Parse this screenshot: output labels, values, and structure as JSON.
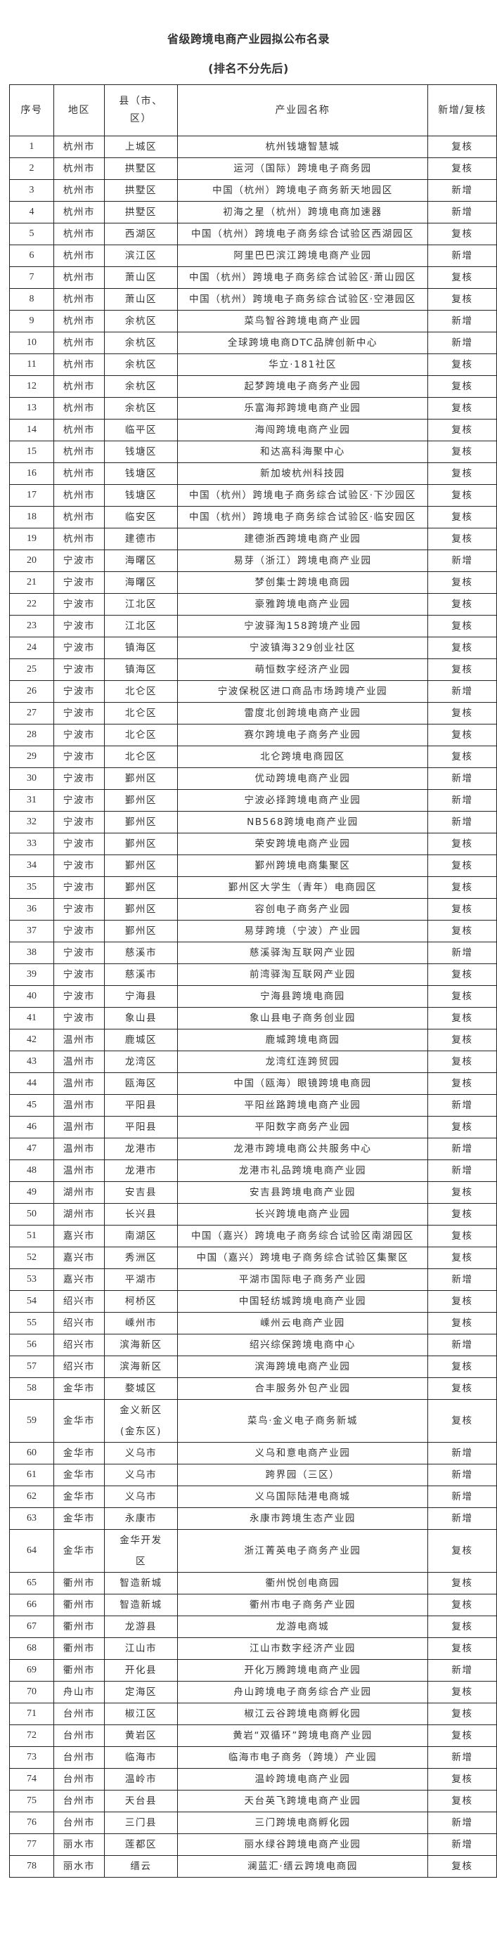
{
  "title": "省级跨境电商产业园拟公布名录",
  "subtitle": "(排名不分先后)",
  "table": {
    "headers": [
      "序号",
      "地区",
      "县（市、区）",
      "产业园名称",
      "新增/复核"
    ],
    "rows": [
      [
        "1",
        "杭州市",
        "上城区",
        "杭州钱塘智慧城",
        "复核"
      ],
      [
        "2",
        "杭州市",
        "拱墅区",
        "运河（国际）跨境电子商务园",
        "复核"
      ],
      [
        "3",
        "杭州市",
        "拱墅区",
        "中国（杭州）跨境电子商务新天地园区",
        "新增"
      ],
      [
        "4",
        "杭州市",
        "拱墅区",
        "初海之星（杭州）跨境电商加速器",
        "新增"
      ],
      [
        "5",
        "杭州市",
        "西湖区",
        "中国（杭州）跨境电子商务综合试验区西湖园区",
        "复核"
      ],
      [
        "6",
        "杭州市",
        "滨江区",
        "阿里巴巴滨江跨境电商产业园",
        "新增"
      ],
      [
        "7",
        "杭州市",
        "萧山区",
        "中国（杭州）跨境电子商务综合试验区·萧山园区",
        "复核"
      ],
      [
        "8",
        "杭州市",
        "萧山区",
        "中国（杭州）跨境电子商务综合试验区·空港园区",
        "复核"
      ],
      [
        "9",
        "杭州市",
        "余杭区",
        "菜鸟智谷跨境电商产业园",
        "新增"
      ],
      [
        "10",
        "杭州市",
        "余杭区",
        "全球跨境电商DTC品牌创新中心",
        "新增"
      ],
      [
        "11",
        "杭州市",
        "余杭区",
        "华立·181社区",
        "复核"
      ],
      [
        "12",
        "杭州市",
        "余杭区",
        "起梦跨境电子商务产业园",
        "复核"
      ],
      [
        "13",
        "杭州市",
        "余杭区",
        "乐富海邦跨境电商产业园",
        "复核"
      ],
      [
        "14",
        "杭州市",
        "临平区",
        "海闯跨境电商产业园",
        "复核"
      ],
      [
        "15",
        "杭州市",
        "钱塘区",
        "和达高科海聚中心",
        "复核"
      ],
      [
        "16",
        "杭州市",
        "钱塘区",
        "新加坡杭州科技园",
        "复核"
      ],
      [
        "17",
        "杭州市",
        "钱塘区",
        "中国（杭州）跨境电子商务综合试验区·下沙园区",
        "复核"
      ],
      [
        "18",
        "杭州市",
        "临安区",
        "中国（杭州）跨境电子商务综合试验区·临安园区",
        "复核"
      ],
      [
        "19",
        "杭州市",
        "建德市",
        "建德浙西跨境电商产业园",
        "复核"
      ],
      [
        "20",
        "宁波市",
        "海曙区",
        "易芽（浙江）跨境电商产业园",
        "新增"
      ],
      [
        "21",
        "宁波市",
        "海曙区",
        "梦创集士跨境电商园",
        "复核"
      ],
      [
        "22",
        "宁波市",
        "江北区",
        "豪雅跨境电商产业园",
        "复核"
      ],
      [
        "23",
        "宁波市",
        "江北区",
        "宁波驿淘158跨境产业园",
        "复核"
      ],
      [
        "24",
        "宁波市",
        "镇海区",
        "宁波镇海329创业社区",
        "复核"
      ],
      [
        "25",
        "宁波市",
        "镇海区",
        "萌恒数字经济产业园",
        "复核"
      ],
      [
        "26",
        "宁波市",
        "北仑区",
        "宁波保税区进口商品市场跨境产业园",
        "新增"
      ],
      [
        "27",
        "宁波市",
        "北仑区",
        "雷度北创跨境电商产业园",
        "复核"
      ],
      [
        "28",
        "宁波市",
        "北仑区",
        "赛尔跨境电子商务产业园",
        "复核"
      ],
      [
        "29",
        "宁波市",
        "北仑区",
        "北仑跨境电商园区",
        "复核"
      ],
      [
        "30",
        "宁波市",
        "鄞州区",
        "优动跨境电商产业园",
        "新增"
      ],
      [
        "31",
        "宁波市",
        "鄞州区",
        "宁波必择跨境电商产业园",
        "新增"
      ],
      [
        "32",
        "宁波市",
        "鄞州区",
        "NB568跨境电商产业园",
        "新增"
      ],
      [
        "33",
        "宁波市",
        "鄞州区",
        "荣安跨境电商产业园",
        "复核"
      ],
      [
        "34",
        "宁波市",
        "鄞州区",
        "鄞州跨境电商集聚区",
        "复核"
      ],
      [
        "35",
        "宁波市",
        "鄞州区",
        "鄞州区大学生（青年）电商园区",
        "复核"
      ],
      [
        "36",
        "宁波市",
        "鄞州区",
        "容创电子商务产业园",
        "复核"
      ],
      [
        "37",
        "宁波市",
        "鄞州区",
        "易芽跨境（宁波）产业园",
        "复核"
      ],
      [
        "38",
        "宁波市",
        "慈溪市",
        "慈溪驿淘互联网产业园",
        "新增"
      ],
      [
        "39",
        "宁波市",
        "慈溪市",
        "前湾驿淘互联网产业园",
        "复核"
      ],
      [
        "40",
        "宁波市",
        "宁海县",
        "宁海县跨境电商园",
        "复核"
      ],
      [
        "41",
        "宁波市",
        "象山县",
        "象山县电子商务创业园",
        "复核"
      ],
      [
        "42",
        "温州市",
        "鹿城区",
        "鹿城跨境电商园",
        "复核"
      ],
      [
        "43",
        "温州市",
        "龙湾区",
        "龙湾红连跨贸园",
        "复核"
      ],
      [
        "44",
        "温州市",
        "瓯海区",
        "中国（瓯海）眼镜跨境电商园",
        "复核"
      ],
      [
        "45",
        "温州市",
        "平阳县",
        "平阳丝路跨境电商产业园",
        "新增"
      ],
      [
        "46",
        "温州市",
        "平阳县",
        "平阳数字商务产业园",
        "复核"
      ],
      [
        "47",
        "温州市",
        "龙港市",
        "龙港市跨境电商公共服务中心",
        "新增"
      ],
      [
        "48",
        "温州市",
        "龙港市",
        "龙港市礼品跨境电商产业园",
        "新增"
      ],
      [
        "49",
        "湖州市",
        "安吉县",
        "安吉县跨境电商产业园",
        "复核"
      ],
      [
        "50",
        "湖州市",
        "长兴县",
        "长兴跨境电商产业园",
        "复核"
      ],
      [
        "51",
        "嘉兴市",
        "南湖区",
        "中国（嘉兴）跨境电子商务综合试验区南湖园区",
        "复核"
      ],
      [
        "52",
        "嘉兴市",
        "秀洲区",
        "中国（嘉兴）跨境电子商务综合试验区集聚区",
        "复核"
      ],
      [
        "53",
        "嘉兴市",
        "平湖市",
        "平湖市国际电子商务产业园",
        "新增"
      ],
      [
        "54",
        "绍兴市",
        "柯桥区",
        "中国轻纺城跨境电商产业园",
        "复核"
      ],
      [
        "55",
        "绍兴市",
        "嵊州市",
        "嵊州云电商产业园",
        "复核"
      ],
      [
        "56",
        "绍兴市",
        "滨海新区",
        "绍兴综保跨境电商中心",
        "新增"
      ],
      [
        "57",
        "绍兴市",
        "滨海新区",
        "滨海跨境电商产业园",
        "复核"
      ],
      [
        "58",
        "金华市",
        "婺城区",
        "合丰服务外包产业园",
        "复核"
      ],
      [
        "59",
        "金华市",
        "金义新区(金东区)",
        "菜鸟·金义电子商务新城",
        "复核"
      ],
      [
        "60",
        "金华市",
        "义乌市",
        "义乌和意电商产业园",
        "新增"
      ],
      [
        "61",
        "金华市",
        "义乌市",
        "跨界园（三区）",
        "新增"
      ],
      [
        "62",
        "金华市",
        "义乌市",
        "义乌国际陆港电商城",
        "新增"
      ],
      [
        "63",
        "金华市",
        "永康市",
        "永康市跨境生态产业园",
        "新增"
      ],
      [
        "64",
        "金华市",
        "金华开发区",
        "浙江菁英电子商务产业园",
        "复核"
      ],
      [
        "65",
        "衢州市",
        "智造新城",
        "衢州悦创电商园",
        "复核"
      ],
      [
        "66",
        "衢州市",
        "智造新城",
        "衢州市电子商务产业园",
        "复核"
      ],
      [
        "67",
        "衢州市",
        "龙游县",
        "龙游电商城",
        "复核"
      ],
      [
        "68",
        "衢州市",
        "江山市",
        "江山市数字经济产业园",
        "复核"
      ],
      [
        "69",
        "衢州市",
        "开化县",
        "开化万腾跨境电商产业园",
        "新增"
      ],
      [
        "70",
        "舟山市",
        "定海区",
        "舟山跨境电子商务综合产业园",
        "复核"
      ],
      [
        "71",
        "台州市",
        "椒江区",
        "椒江云谷跨境电商孵化园",
        "复核"
      ],
      [
        "72",
        "台州市",
        "黄岩区",
        "黄岩“双循环”跨境电商产业园",
        "复核"
      ],
      [
        "73",
        "台州市",
        "临海市",
        "临海市电子商务（跨境）产业园",
        "新增"
      ],
      [
        "74",
        "台州市",
        "温岭市",
        "温岭跨境电商产业园",
        "复核"
      ],
      [
        "75",
        "台州市",
        "天台县",
        "天台英飞跨境电商产业园",
        "复核"
      ],
      [
        "76",
        "台州市",
        "三门县",
        "三门跨境电商孵化园",
        "新增"
      ],
      [
        "77",
        "丽水市",
        "莲都区",
        "丽水绿谷跨境电商产业园",
        "新增"
      ],
      [
        "78",
        "丽水市",
        "缙云",
        "澜蓝汇·缙云跨境电商园",
        "复核"
      ]
    ]
  }
}
